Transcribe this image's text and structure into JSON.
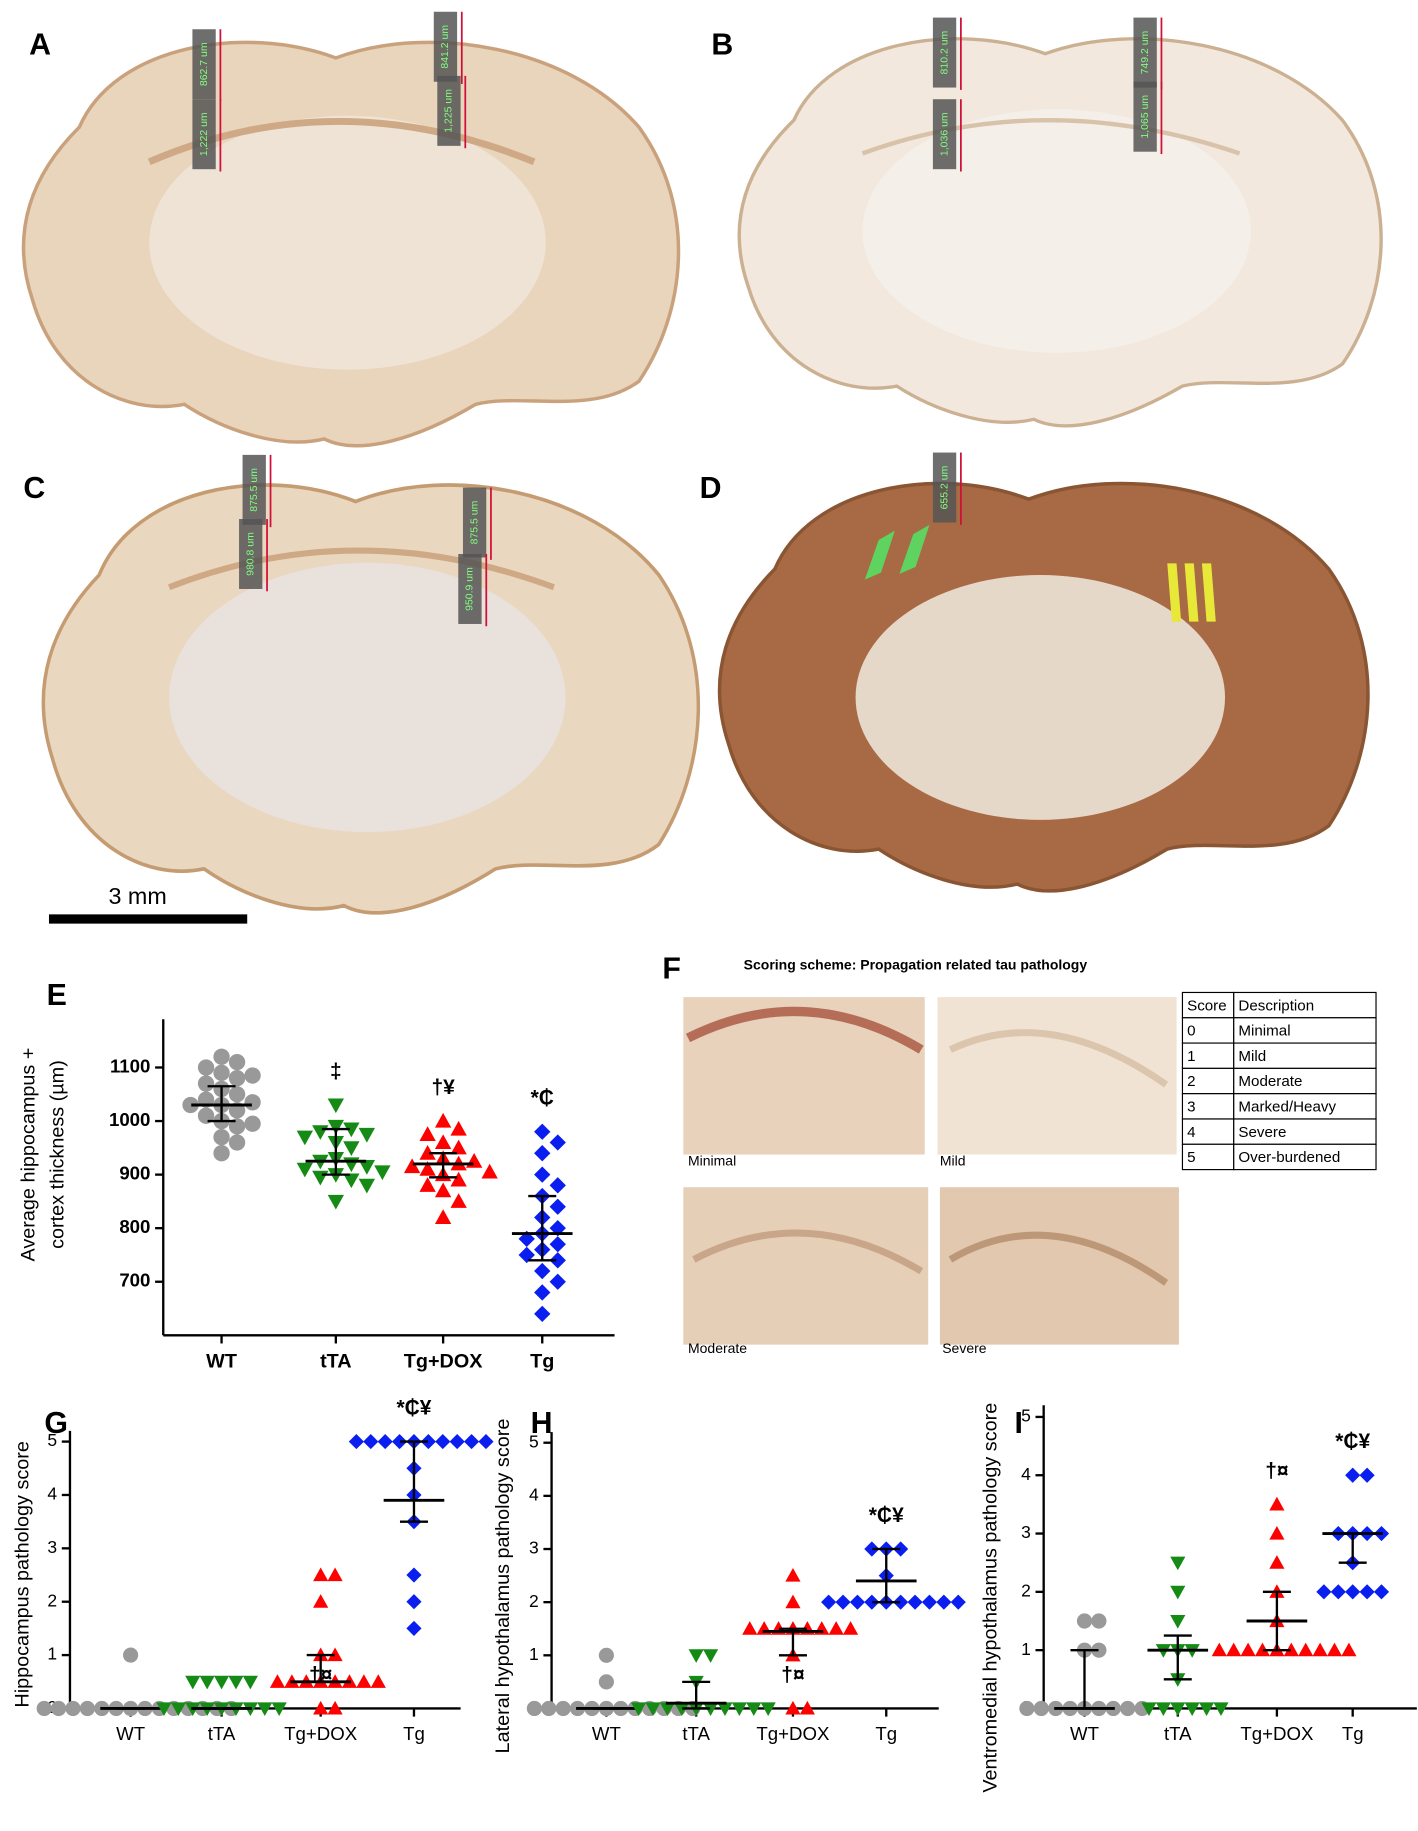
{
  "panel_labels": [
    "A",
    "B",
    "C",
    "D"
  ],
  "brain_sections": [
    {
      "measurements": [
        "862.7 um",
        "1,222 um",
        "841.2 um",
        "1,225 um"
      ]
    },
    {
      "measurements": [
        "810.2 um",
        "1,036 um",
        "749.2 um",
        "1,065 um"
      ]
    },
    {
      "measurements": [
        "875.5 um",
        "980.8 um",
        "875.5 um",
        "950.9 um"
      ]
    },
    {
      "measurements": [
        "655.2 um"
      ]
    }
  ],
  "scale_bar": "3 mm",
  "scoring": {
    "panel": "F",
    "title": "Scoring scheme: Propagation related tau pathology",
    "images": [
      "Minimal",
      "Mild",
      "Moderate",
      "Severe"
    ],
    "table": {
      "header": [
        "Score",
        "Description"
      ],
      "rows": [
        [
          0,
          "Minimal"
        ],
        [
          1,
          "Mild"
        ],
        [
          2,
          "Moderate"
        ],
        [
          3,
          "Marked/Heavy"
        ],
        [
          4,
          "Severe"
        ],
        [
          5,
          "Over-burdened"
        ]
      ]
    }
  },
  "chart_data": [
    {
      "type": "scatter",
      "panel": "E",
      "ylabel": [
        "Average hippocampus +",
        "cortex thickness (µm)"
      ],
      "categories": [
        "WT",
        "tTA",
        "Tg+DOX",
        "Tg"
      ],
      "ylim": [
        600,
        1190
      ],
      "yticks": [
        700,
        800,
        900,
        1000,
        1100
      ],
      "series": [
        {
          "color": "#999999",
          "marker": "circle",
          "values": [
            1120,
            1110,
            1100,
            1090,
            1085,
            1080,
            1070,
            1060,
            1050,
            1040,
            1035,
            1030,
            1030,
            1020,
            1010,
            1000,
            995,
            990,
            970,
            960,
            940
          ],
          "center": 1030,
          "range": [
            1000,
            1065
          ]
        },
        {
          "color": "#158a15",
          "marker": "down",
          "values": [
            1030,
            990,
            985,
            980,
            975,
            970,
            960,
            950,
            930,
            925,
            920,
            915,
            910,
            905,
            900,
            895,
            890,
            880,
            850
          ],
          "center": 925,
          "range": [
            900,
            985
          ],
          "annotation": "‡"
        },
        {
          "color": "#ff0000",
          "marker": "up",
          "values": [
            1000,
            985,
            975,
            960,
            950,
            940,
            930,
            925,
            920,
            915,
            910,
            905,
            900,
            890,
            880,
            870,
            850,
            820
          ],
          "center": 920,
          "range": [
            895,
            940
          ],
          "annotation": "†¥"
        },
        {
          "color": "#0a1ef0",
          "marker": "diamond",
          "values": [
            980,
            960,
            940,
            900,
            880,
            860,
            840,
            820,
            800,
            790,
            780,
            770,
            760,
            750,
            740,
            720,
            700,
            680,
            640
          ],
          "center": 790,
          "range": [
            740,
            860
          ],
          "annotation": "*₵"
        }
      ]
    },
    {
      "type": "scatter",
      "panel": "G",
      "ylabel": [
        "Hippocampus pathology score"
      ],
      "categories": [
        "WT",
        "tTA",
        "Tg+DOX",
        "Tg"
      ],
      "ylim": [
        0,
        5.2
      ],
      "yticks": [
        0,
        1,
        2,
        3,
        4,
        5
      ],
      "series": [
        {
          "color": "#999999",
          "marker": "circle",
          "values": [
            1,
            0,
            0,
            0,
            0,
            0,
            0,
            0,
            0,
            0,
            0,
            0,
            0,
            0,
            0
          ],
          "center": 0,
          "range": [
            0,
            0
          ]
        },
        {
          "color": "#158a15",
          "marker": "down",
          "values": [
            0.5,
            0.5,
            0.5,
            0.5,
            0.5,
            0,
            0,
            0,
            0,
            0,
            0,
            0,
            0,
            0
          ],
          "center": 0,
          "range": [
            0,
            0
          ]
        },
        {
          "color": "#ff0000",
          "marker": "up",
          "values": [
            2.5,
            2.5,
            2,
            1,
            1,
            0.5,
            0.5,
            0.5,
            0.5,
            0.5,
            0.5,
            0.5,
            0.5,
            0,
            0
          ],
          "center": 0.5,
          "range": [
            0.5,
            1
          ],
          "annotation": "†¤"
        },
        {
          "color": "#0a1ef0",
          "marker": "diamond",
          "values": [
            5,
            5,
            5,
            5,
            5,
            5,
            5,
            5,
            5,
            5,
            4.5,
            4,
            3.5,
            2.5,
            2,
            1.5
          ],
          "center": 3.9,
          "range": [
            3.5,
            5
          ],
          "annotation": "*₵¥"
        }
      ]
    },
    {
      "type": "scatter",
      "panel": "H",
      "ylabel": [
        "Lateral hypothalamus pathology score"
      ],
      "categories": [
        "WT",
        "tTA",
        "Tg+DOX",
        "Tg"
      ],
      "ylim": [
        0,
        5.2
      ],
      "yticks": [
        0,
        1,
        2,
        3,
        4,
        5
      ],
      "series": [
        {
          "color": "#999999",
          "marker": "circle",
          "values": [
            1,
            0.5,
            0,
            0,
            0,
            0,
            0,
            0,
            0,
            0,
            0,
            0,
            0,
            0
          ],
          "center": 0,
          "range": [
            0,
            0
          ]
        },
        {
          "color": "#158a15",
          "marker": "down",
          "values": [
            1,
            1,
            0.5,
            0,
            0,
            0,
            0,
            0,
            0,
            0,
            0,
            0,
            0
          ],
          "center": 0.1,
          "range": [
            0,
            0.5
          ]
        },
        {
          "color": "#ff0000",
          "marker": "up",
          "values": [
            2.5,
            2,
            1.5,
            1.5,
            1.5,
            1.5,
            1.5,
            1.5,
            1.5,
            1.5,
            1,
            0,
            0
          ],
          "center": 1.45,
          "range": [
            1,
            1.5
          ],
          "annotation": "†¤"
        },
        {
          "color": "#0a1ef0",
          "marker": "diamond",
          "values": [
            3,
            3,
            3,
            2.5,
            2,
            2,
            2,
            2,
            2,
            2,
            2,
            2,
            2,
            2
          ],
          "center": 2.4,
          "range": [
            2,
            3
          ],
          "annotation": "*₵¥"
        }
      ]
    },
    {
      "type": "scatter",
      "panel": "I",
      "ylabel": [
        "Ventromedial hypothalamus pathology score"
      ],
      "categories": [
        "WT",
        "tTA",
        "Tg+DOX",
        "Tg"
      ],
      "ylim": [
        0,
        5.2
      ],
      "yticks": [
        0,
        1,
        2,
        3,
        4,
        5
      ],
      "series": [
        {
          "color": "#999999",
          "marker": "circle",
          "values": [
            1.5,
            1.5,
            1,
            1,
            0,
            0,
            0,
            0,
            0,
            0,
            0,
            0,
            0
          ],
          "center": 0,
          "range": [
            0,
            1
          ]
        },
        {
          "color": "#158a15",
          "marker": "down",
          "values": [
            2.5,
            2,
            1.5,
            1,
            1,
            1,
            0.5,
            0,
            0,
            0,
            0,
            0,
            0
          ],
          "center": 1,
          "range": [
            0.5,
            1.25
          ]
        },
        {
          "color": "#ff0000",
          "marker": "up",
          "values": [
            3.5,
            3,
            2.5,
            2,
            1.5,
            1,
            1,
            1,
            1,
            1,
            1,
            1,
            1,
            1,
            1
          ],
          "center": 1.5,
          "range": [
            1,
            2
          ],
          "annotation": "†¤"
        },
        {
          "color": "#0a1ef0",
          "marker": "diamond",
          "values": [
            4,
            4,
            3,
            3,
            3,
            3,
            2.5,
            2,
            2,
            2,
            2,
            2
          ],
          "center": 3,
          "range": [
            2.5,
            3
          ],
          "annotation": "*₵¥"
        }
      ]
    }
  ]
}
